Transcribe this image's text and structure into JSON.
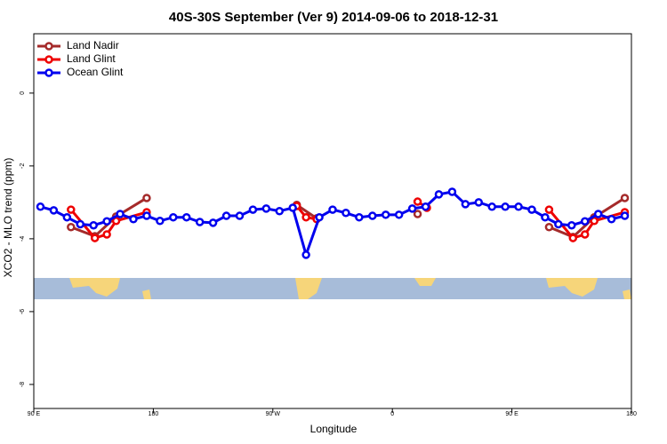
{
  "chart_data": {
    "type": "line",
    "title": "40S-30S September (Ver 9)   2014-09-06 to 2018-12-31",
    "x_label": "Longitude",
    "y_label": "XCO2 - MLO trend (ppm)",
    "xlim": [
      90,
      540
    ],
    "ylim": [
      -8.66,
      1.63
    ],
    "xticks": [
      {
        "value": 90,
        "label": "90 E"
      },
      180,
      {
        "value": 270,
        "label": "90 W"
      },
      {
        "value": 360,
        "label": "0"
      },
      {
        "value": 450,
        "label": "90 E"
      },
      {
        "value": 540,
        "label": "180"
      }
    ],
    "yticks": [
      0,
      -2,
      -4,
      -6,
      -8
    ],
    "legend": "top-left",
    "series": [
      {
        "name": "Land Nadir",
        "color": "#a52a2a",
        "x": [
          118,
          136,
          152,
          175,
          null,
          288,
          303,
          null,
          379,
          null,
          478,
          496,
          512,
          535
        ],
        "values": [
          -3.68,
          -3.93,
          -3.39,
          -2.88,
          null,
          -3.07,
          -3.44,
          null,
          -3.32,
          null,
          -3.68,
          -3.95,
          -3.41,
          -2.88
        ]
      },
      {
        "name": "Land Glint",
        "color": "#ee0000",
        "x": [
          118,
          136,
          145,
          152,
          175,
          null,
          288,
          295,
          303,
          null,
          379,
          386,
          null,
          478,
          496,
          505,
          512,
          535
        ],
        "values": [
          -3.2,
          -3.98,
          -3.88,
          -3.51,
          -3.27,
          null,
          -3.1,
          -3.41,
          -3.46,
          null,
          -2.98,
          -3.15,
          null,
          -3.2,
          -3.98,
          -3.88,
          -3.51,
          -3.27
        ]
      },
      {
        "name": "Ocean Glint",
        "color": "#0000ee",
        "x": [
          95,
          105,
          115,
          125,
          135,
          145,
          155,
          165,
          175,
          185,
          195,
          205,
          215,
          225,
          235,
          245,
          255,
          265,
          275,
          285,
          295,
          305,
          315,
          325,
          335,
          345,
          355,
          365,
          375,
          385,
          395,
          405,
          415,
          425,
          435,
          445,
          455,
          465,
          475,
          485,
          495,
          505,
          515,
          525,
          535
        ],
        "values": [
          -3.12,
          -3.22,
          -3.41,
          -3.6,
          -3.63,
          -3.52,
          -3.32,
          -3.46,
          -3.37,
          -3.51,
          -3.41,
          -3.41,
          -3.54,
          -3.56,
          -3.37,
          -3.37,
          -3.2,
          -3.17,
          -3.24,
          -3.15,
          -4.44,
          -3.41,
          -3.2,
          -3.29,
          -3.41,
          -3.37,
          -3.34,
          -3.34,
          -3.17,
          -3.12,
          -2.78,
          -2.71,
          -3.05,
          -3.0,
          -3.12,
          -3.12,
          -3.12,
          -3.2,
          -3.41,
          -3.6,
          -3.63,
          -3.52,
          -3.32,
          -3.46,
          -3.37
        ]
      }
    ]
  }
}
